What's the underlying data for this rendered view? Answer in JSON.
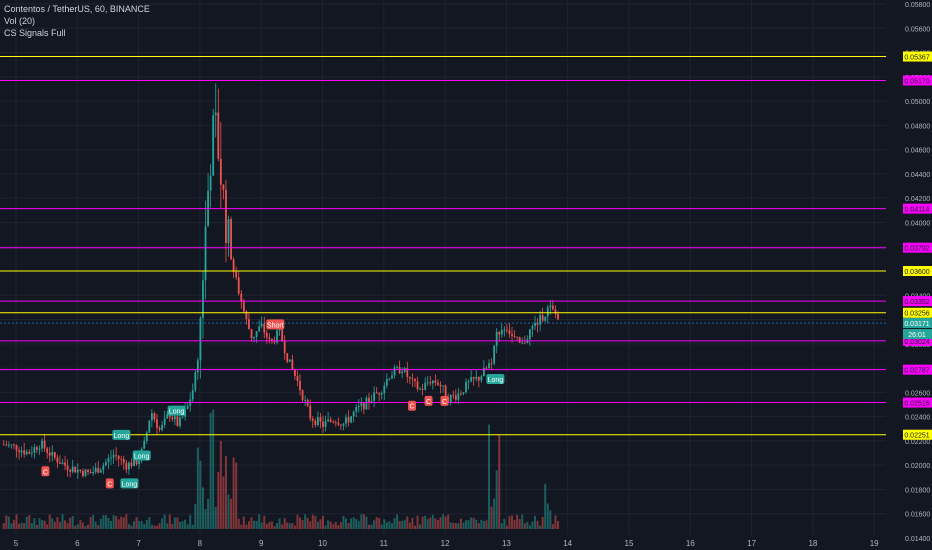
{
  "legend": {
    "symbol_line": "Contentos / TetherUS, 60, BINANCE",
    "volume_line": "Vol (20)",
    "indicator_line": "CS Signals Full"
  },
  "colors": {
    "background": "#131722",
    "grid": "#1e2330",
    "axis_text": "#b2b5be",
    "up": "#26a69a",
    "down": "#ef5350",
    "yellow_level": "#ffff00",
    "magenta_level": "#ff00ff",
    "price_line": "#2196f3"
  },
  "chart_data": {
    "type": "candlestick",
    "title": "",
    "xlabel": "",
    "ylabel": "",
    "x_axis_ticks": [
      "5",
      "6",
      "7",
      "8",
      "9",
      "10",
      "11",
      "12",
      "13",
      "14",
      "15",
      "16",
      "17",
      "18",
      "19"
    ],
    "y_axis_ticks": [
      "0.05800",
      "0.05600",
      "0.05400",
      "0.05200",
      "0.05000",
      "0.04800",
      "0.04600",
      "0.04400",
      "0.04200",
      "0.04000",
      "0.03800",
      "0.03600",
      "0.03400",
      "0.03200",
      "0.03000",
      "0.02800",
      "0.02600",
      "0.02400",
      "0.02200",
      "0.02000",
      "0.01800",
      "0.01600",
      "0.01400"
    ],
    "ylim": [
      0.0134,
      0.0588
    ],
    "grid": true,
    "levels": [
      {
        "label": "0.05367",
        "value": 0.05367,
        "color": "yellow"
      },
      {
        "label": "0.05170",
        "value": 0.0517,
        "color": "magenta"
      },
      {
        "label": "0.04114",
        "value": 0.04114,
        "color": "magenta"
      },
      {
        "label": "0.03792",
        "value": 0.03792,
        "color": "magenta"
      },
      {
        "label": "0.03600",
        "value": 0.036,
        "color": "yellow"
      },
      {
        "label": "0.03352",
        "value": 0.03352,
        "color": "magenta"
      },
      {
        "label": "0.03256",
        "value": 0.03256,
        "color": "yellow"
      },
      {
        "label": "0.03024",
        "value": 0.03024,
        "color": "magenta"
      },
      {
        "label": "0.02787",
        "value": 0.02787,
        "color": "magenta"
      },
      {
        "label": "0.02516",
        "value": 0.02516,
        "color": "magenta"
      },
      {
        "label": "0.02251",
        "value": 0.02251,
        "color": "yellow"
      }
    ],
    "current_price": {
      "label": "0.03171",
      "value": 0.03171
    },
    "countdown_label": "26:01",
    "price_path": [
      [
        4.8,
        0.0217
      ],
      [
        5.0,
        0.0215
      ],
      [
        5.2,
        0.021
      ],
      [
        5.4,
        0.0218
      ],
      [
        5.6,
        0.0207
      ],
      [
        5.8,
        0.02
      ],
      [
        6.0,
        0.0196
      ],
      [
        6.2,
        0.0193
      ],
      [
        6.4,
        0.0199
      ],
      [
        6.6,
        0.0209
      ],
      [
        6.8,
        0.02
      ],
      [
        7.0,
        0.0204
      ],
      [
        7.1,
        0.0218
      ],
      [
        7.2,
        0.0245
      ],
      [
        7.35,
        0.0228
      ],
      [
        7.5,
        0.0243
      ],
      [
        7.65,
        0.0233
      ],
      [
        7.8,
        0.0248
      ],
      [
        7.9,
        0.0265
      ],
      [
        7.98,
        0.0292
      ],
      [
        8.05,
        0.036
      ],
      [
        8.1,
        0.04
      ],
      [
        8.15,
        0.044
      ],
      [
        8.2,
        0.047
      ],
      [
        8.25,
        0.048
      ],
      [
        8.3,
        0.046
      ],
      [
        8.38,
        0.042
      ],
      [
        8.45,
        0.039
      ],
      [
        8.55,
        0.036
      ],
      [
        8.65,
        0.034
      ],
      [
        8.75,
        0.032
      ],
      [
        8.85,
        0.0305
      ],
      [
        9.0,
        0.0315
      ],
      [
        9.15,
        0.03
      ],
      [
        9.3,
        0.031
      ],
      [
        9.45,
        0.0285
      ],
      [
        9.6,
        0.0268
      ],
      [
        9.8,
        0.024
      ],
      [
        10.0,
        0.0233
      ],
      [
        10.2,
        0.0238
      ],
      [
        10.35,
        0.0234
      ],
      [
        10.55,
        0.0245
      ],
      [
        10.75,
        0.0253
      ],
      [
        10.95,
        0.0262
      ],
      [
        11.1,
        0.0275
      ],
      [
        11.3,
        0.028
      ],
      [
        11.45,
        0.0268
      ],
      [
        11.6,
        0.0262
      ],
      [
        11.75,
        0.027
      ],
      [
        11.9,
        0.0268
      ],
      [
        12.05,
        0.0255
      ],
      [
        12.2,
        0.0258
      ],
      [
        12.4,
        0.0268
      ],
      [
        12.55,
        0.0272
      ],
      [
        12.65,
        0.0278
      ],
      [
        12.75,
        0.0285
      ],
      [
        12.85,
        0.031
      ],
      [
        13.0,
        0.0315
      ],
      [
        13.1,
        0.0305
      ],
      [
        13.25,
        0.0298
      ],
      [
        13.4,
        0.0312
      ],
      [
        13.55,
        0.032
      ],
      [
        13.7,
        0.033
      ],
      [
        13.8,
        0.0324
      ],
      [
        13.88,
        0.0317
      ]
    ],
    "signals": [
      {
        "type": "sell",
        "label": "C",
        "day": 5.48,
        "price": 0.0195
      },
      {
        "type": "sell",
        "label": "C",
        "day": 6.53,
        "price": 0.0185
      },
      {
        "type": "buy",
        "label": "Long",
        "day": 6.85,
        "price": 0.0185
      },
      {
        "type": "buy",
        "label": "Long",
        "day": 6.72,
        "price": 0.0225
      },
      {
        "type": "buy",
        "label": "Long",
        "day": 7.05,
        "price": 0.0208
      },
      {
        "type": "buy",
        "label": "Long",
        "day": 7.62,
        "price": 0.0245
      },
      {
        "type": "sell",
        "label": "Short",
        "day": 9.23,
        "price": 0.0316
      },
      {
        "type": "sell",
        "label": "C",
        "day": 11.46,
        "price": 0.0249
      },
      {
        "type": "sell",
        "label": "C",
        "day": 11.73,
        "price": 0.0253
      },
      {
        "type": "sell",
        "label": "C",
        "day": 11.99,
        "price": 0.0253
      },
      {
        "type": "buy",
        "label": "Long",
        "day": 12.82,
        "price": 0.0271
      }
    ]
  }
}
